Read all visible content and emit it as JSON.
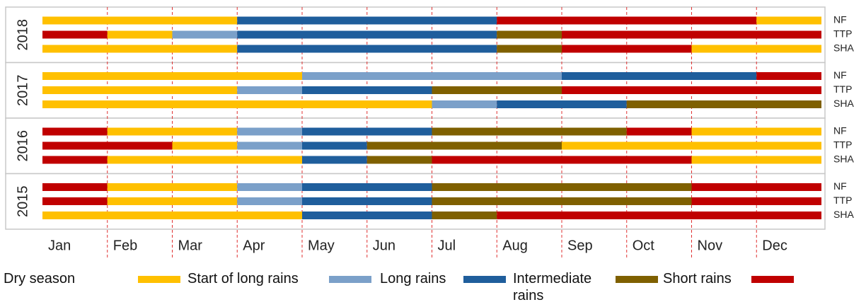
{
  "chart_data": {
    "type": "timeline",
    "categories": [
      "Jan",
      "Feb",
      "Mar",
      "Apr",
      "May",
      "Jun",
      "Jul",
      "Aug",
      "Sep",
      "Oct",
      "Nov",
      "Dec"
    ],
    "xlim": [
      0,
      12
    ],
    "xticks": [
      1,
      2,
      3,
      4,
      5,
      6,
      7,
      8,
      9,
      10,
      11
    ],
    "grid": true,
    "series": [
      {
        "name": "Dry season",
        "color": "#FFC000"
      },
      {
        "name": "Start of long rains",
        "color": "#7BA0C9"
      },
      {
        "name": "Long rains",
        "color": "#1F5E9C"
      },
      {
        "name": "Intermediate rains",
        "color": "#7F6000"
      },
      {
        "name": "Short rains",
        "color": "#C00000"
      }
    ],
    "groups": [
      {
        "name": "2018",
        "rows": [
          {
            "name": "NF",
            "segments": [
              {
                "season": 0,
                "start": 0,
                "end": 3
              },
              {
                "season": 2,
                "start": 3,
                "end": 7
              },
              {
                "season": 4,
                "start": 7,
                "end": 11
              },
              {
                "season": 0,
                "start": 11,
                "end": 12
              }
            ]
          },
          {
            "name": "TTP",
            "segments": [
              {
                "season": 4,
                "start": 0,
                "end": 1
              },
              {
                "season": 0,
                "start": 1,
                "end": 2
              },
              {
                "season": 1,
                "start": 2,
                "end": 3
              },
              {
                "season": 2,
                "start": 3,
                "end": 7
              },
              {
                "season": 3,
                "start": 7,
                "end": 8
              },
              {
                "season": 4,
                "start": 8,
                "end": 12
              }
            ]
          },
          {
            "name": "SHA",
            "segments": [
              {
                "season": 0,
                "start": 0,
                "end": 3
              },
              {
                "season": 2,
                "start": 3,
                "end": 7
              },
              {
                "season": 3,
                "start": 7,
                "end": 8
              },
              {
                "season": 4,
                "start": 8,
                "end": 10
              },
              {
                "season": 0,
                "start": 10,
                "end": 12
              }
            ]
          }
        ]
      },
      {
        "name": "2017",
        "rows": [
          {
            "name": "NF",
            "segments": [
              {
                "season": 0,
                "start": 0,
                "end": 4
              },
              {
                "season": 1,
                "start": 4,
                "end": 8
              },
              {
                "season": 2,
                "start": 8,
                "end": 11
              },
              {
                "season": 4,
                "start": 11,
                "end": 12
              }
            ]
          },
          {
            "name": "TTP",
            "segments": [
              {
                "season": 0,
                "start": 0,
                "end": 3
              },
              {
                "season": 1,
                "start": 3,
                "end": 4
              },
              {
                "season": 2,
                "start": 4,
                "end": 6
              },
              {
                "season": 3,
                "start": 6,
                "end": 8
              },
              {
                "season": 4,
                "start": 8,
                "end": 12
              }
            ]
          },
          {
            "name": "SHA",
            "segments": [
              {
                "season": 0,
                "start": 0,
                "end": 6
              },
              {
                "season": 1,
                "start": 6,
                "end": 7
              },
              {
                "season": 2,
                "start": 7,
                "end": 9
              },
              {
                "season": 3,
                "start": 9,
                "end": 12
              }
            ]
          }
        ]
      },
      {
        "name": "2016",
        "rows": [
          {
            "name": "NF",
            "segments": [
              {
                "season": 4,
                "start": 0,
                "end": 1
              },
              {
                "season": 0,
                "start": 1,
                "end": 3
              },
              {
                "season": 1,
                "start": 3,
                "end": 4
              },
              {
                "season": 2,
                "start": 4,
                "end": 6
              },
              {
                "season": 3,
                "start": 6,
                "end": 9
              },
              {
                "season": 4,
                "start": 9,
                "end": 10
              },
              {
                "season": 0,
                "start": 10,
                "end": 12
              }
            ]
          },
          {
            "name": "TTP",
            "segments": [
              {
                "season": 4,
                "start": 0,
                "end": 2
              },
              {
                "season": 0,
                "start": 2,
                "end": 3
              },
              {
                "season": 1,
                "start": 3,
                "end": 4
              },
              {
                "season": 2,
                "start": 4,
                "end": 5
              },
              {
                "season": 3,
                "start": 5,
                "end": 8
              },
              {
                "season": 0,
                "start": 8,
                "end": 12
              }
            ]
          },
          {
            "name": "SHA",
            "segments": [
              {
                "season": 4,
                "start": 0,
                "end": 1
              },
              {
                "season": 0,
                "start": 1,
                "end": 4
              },
              {
                "season": 2,
                "start": 4,
                "end": 5
              },
              {
                "season": 3,
                "start": 5,
                "end": 6
              },
              {
                "season": 4,
                "start": 6,
                "end": 10
              },
              {
                "season": 0,
                "start": 10,
                "end": 12
              }
            ]
          }
        ]
      },
      {
        "name": "2015",
        "rows": [
          {
            "name": "NF",
            "segments": [
              {
                "season": 4,
                "start": 0,
                "end": 1
              },
              {
                "season": 0,
                "start": 1,
                "end": 3
              },
              {
                "season": 1,
                "start": 3,
                "end": 4
              },
              {
                "season": 2,
                "start": 4,
                "end": 6
              },
              {
                "season": 3,
                "start": 6,
                "end": 10
              },
              {
                "season": 4,
                "start": 10,
                "end": 12
              }
            ]
          },
          {
            "name": "TTP",
            "segments": [
              {
                "season": 4,
                "start": 0,
                "end": 1
              },
              {
                "season": 0,
                "start": 1,
                "end": 3
              },
              {
                "season": 1,
                "start": 3,
                "end": 4
              },
              {
                "season": 2,
                "start": 4,
                "end": 6
              },
              {
                "season": 3,
                "start": 6,
                "end": 10
              },
              {
                "season": 4,
                "start": 10,
                "end": 12
              }
            ]
          },
          {
            "name": "SHA",
            "segments": [
              {
                "season": 0,
                "start": 0,
                "end": 4
              },
              {
                "season": 2,
                "start": 4,
                "end": 6
              },
              {
                "season": 3,
                "start": 6,
                "end": 7
              },
              {
                "season": 4,
                "start": 7,
                "end": 12
              }
            ]
          }
        ]
      }
    ]
  }
}
